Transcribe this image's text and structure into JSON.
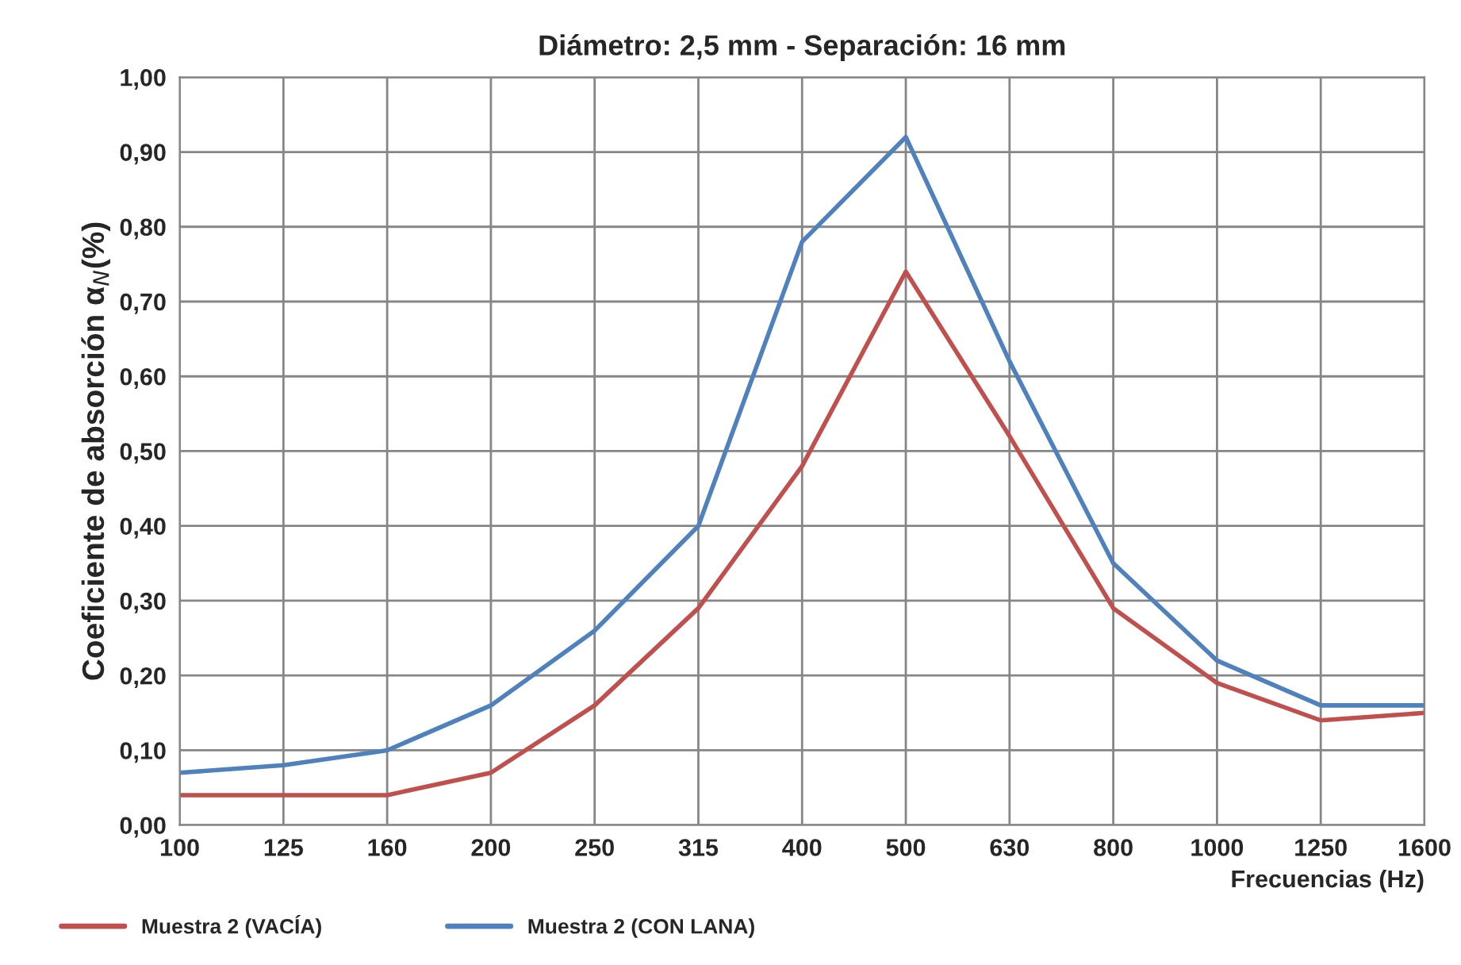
{
  "chart_data": {
    "type": "line",
    "title": "Diámetro: 2,5 mm - Separación: 16 mm",
    "xlabel": "Frecuencias (Hz)",
    "ylabel": "Coeficiente de absorción α$_{N}$(%)",
    "categories": [
      "100",
      "125",
      "160",
      "200",
      "250",
      "315",
      "400",
      "500",
      "630",
      "800",
      "1000",
      "1250",
      "1600"
    ],
    "series": [
      {
        "name": "Muestra 2 (VACÍA)",
        "color": "#c0504d",
        "values": [
          0.04,
          0.04,
          0.04,
          0.07,
          0.16,
          0.29,
          0.48,
          0.74,
          0.52,
          0.29,
          0.19,
          0.14,
          0.15
        ]
      },
      {
        "name": "Muestra 2 (CON LANA)",
        "color": "#4f81bd",
        "values": [
          0.07,
          0.08,
          0.1,
          0.16,
          0.26,
          0.4,
          0.78,
          0.92,
          0.62,
          0.35,
          0.22,
          0.16,
          0.16
        ]
      }
    ],
    "ylim": [
      0,
      1
    ],
    "yticks": [
      {
        "value": 0,
        "label": "0,00"
      },
      {
        "value": 0.1,
        "label": "0,10"
      },
      {
        "value": 0.2,
        "label": "0,20"
      },
      {
        "value": 0.3,
        "label": "0,30"
      },
      {
        "value": 0.4,
        "label": "0,40"
      },
      {
        "value": 0.5,
        "label": "0,50"
      },
      {
        "value": 0.6,
        "label": "0,60"
      },
      {
        "value": 0.7,
        "label": "0,70"
      },
      {
        "value": 0.8,
        "label": "0,80"
      },
      {
        "value": 0.9,
        "label": "0,90"
      },
      {
        "value": 1,
        "label": "1,00"
      }
    ],
    "grid": true,
    "legend": "bottom left",
    "marker": "none",
    "line_style": "solid"
  }
}
